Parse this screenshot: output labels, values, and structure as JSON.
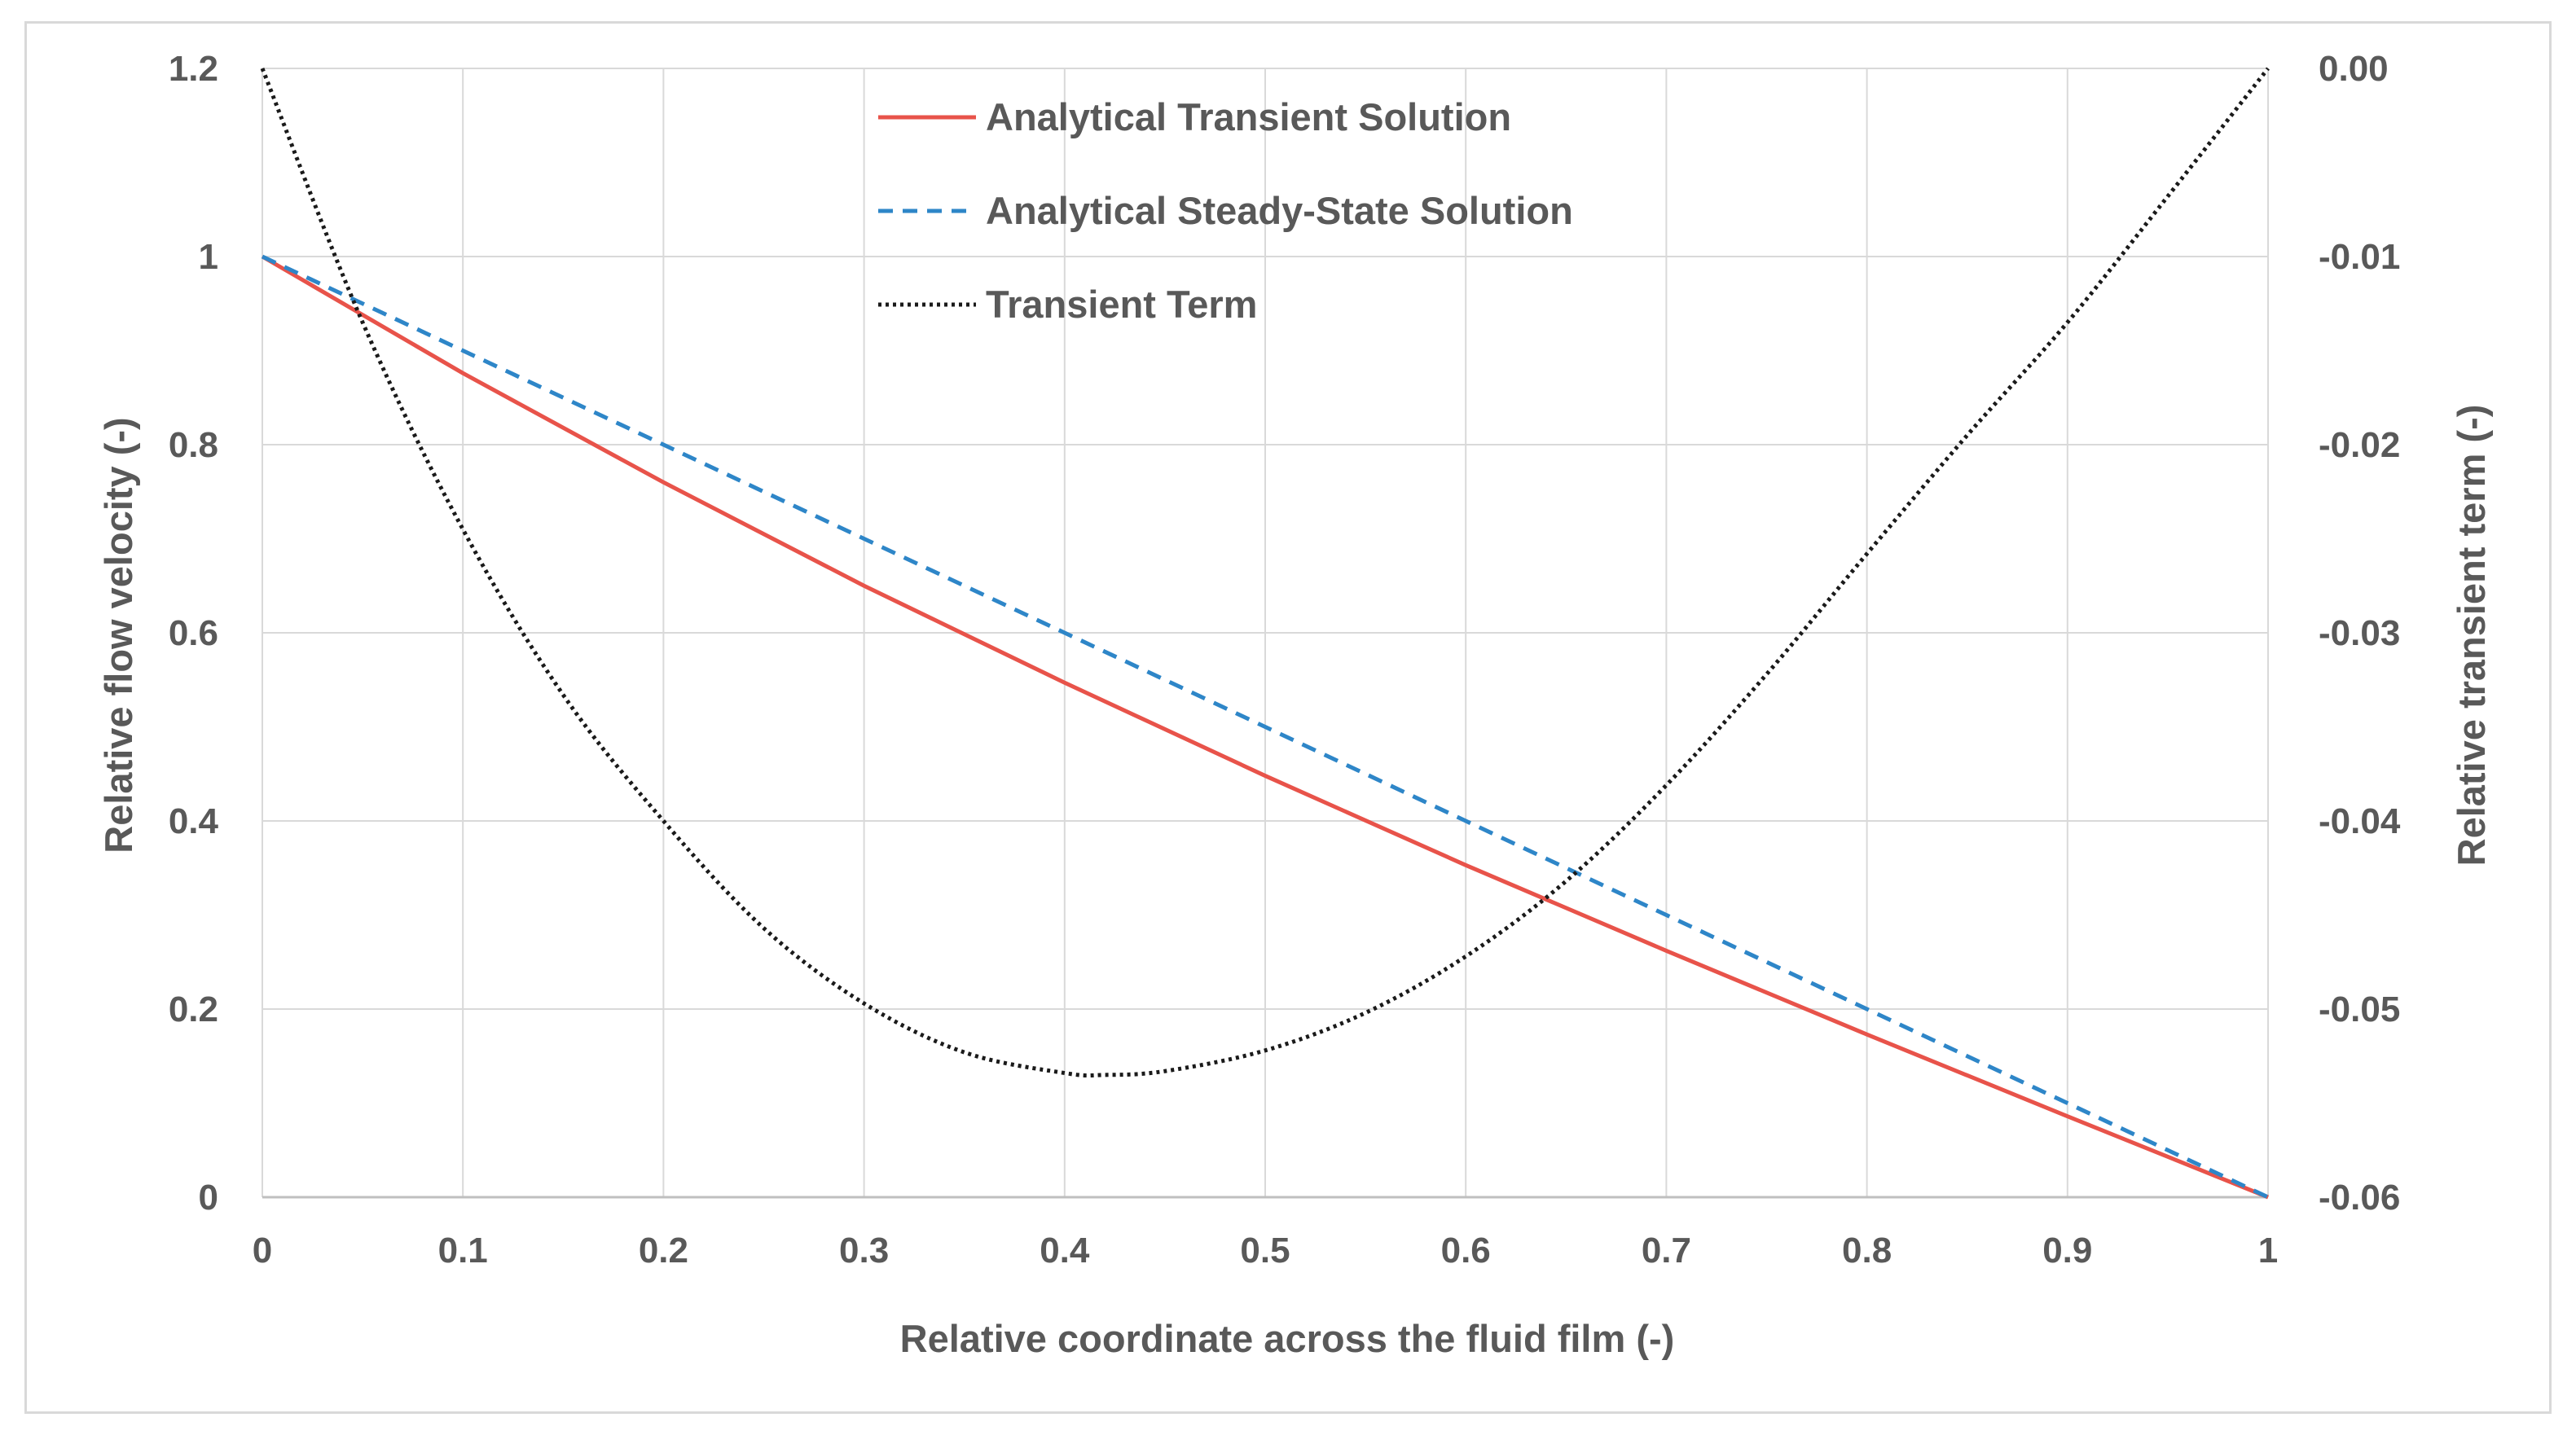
{
  "chart_data": {
    "type": "line",
    "title": "",
    "xlabel": "Relative coordinate across the  fluid film (-)",
    "ylabel": "Relative flow velocity (-)",
    "y2label": "Relative  transient term  (-)",
    "xlim": [
      0,
      1
    ],
    "ylim": [
      0,
      1.2
    ],
    "y2lim": [
      -0.06,
      0.0
    ],
    "x_ticks": [
      "0",
      "0.1",
      "0.2",
      "0.3",
      "0.4",
      "0.5",
      "0.6",
      "0.7",
      "0.8",
      "0.9",
      "1"
    ],
    "y_ticks": [
      "0",
      "0.2",
      "0.4",
      "0.6",
      "0.8",
      "1",
      "1.2"
    ],
    "y2_ticks": [
      "-0.06",
      "-0.05",
      "-0.04",
      "-0.03",
      "-0.02",
      "-0.01",
      "0.00"
    ],
    "grid": true,
    "legend_position": "top-center",
    "series": [
      {
        "name": "Analytical Transient Solution",
        "axis": "left",
        "color": "#e8534a",
        "style": "solid",
        "x": [
          0,
          0.1,
          0.2,
          0.3,
          0.4,
          0.5,
          0.6,
          0.7,
          0.8,
          0.9,
          1.0
        ],
        "y": [
          1.0,
          0.876,
          0.76,
          0.65,
          0.547,
          0.448,
          0.353,
          0.262,
          0.173,
          0.086,
          0.0
        ]
      },
      {
        "name": "Analytical Steady-State Solution",
        "axis": "left",
        "color": "#2e86c8",
        "style": "dashed",
        "x": [
          0,
          0.1,
          0.2,
          0.3,
          0.4,
          0.5,
          0.6,
          0.7,
          0.8,
          0.9,
          1.0
        ],
        "y": [
          1.0,
          0.9,
          0.8,
          0.7,
          0.6,
          0.5,
          0.4,
          0.3,
          0.2,
          0.1,
          0.0
        ]
      },
      {
        "name": "Transient Term",
        "axis": "right",
        "color": "#1a1a1a",
        "style": "dotted",
        "x": [
          0,
          0.05,
          0.1,
          0.15,
          0.2,
          0.25,
          0.3,
          0.35,
          0.4,
          0.42,
          0.45,
          0.5,
          0.55,
          0.6,
          0.65,
          0.7,
          0.75,
          0.8,
          0.85,
          0.9,
          0.95,
          1.0
        ],
        "y": [
          0.0,
          -0.0135,
          -0.0245,
          -0.0333,
          -0.04,
          -0.0457,
          -0.0497,
          -0.0523,
          -0.0534,
          -0.0535,
          -0.0533,
          -0.0522,
          -0.0502,
          -0.0472,
          -0.0432,
          -0.0381,
          -0.0322,
          -0.0258,
          -0.0195,
          -0.0135,
          -0.0068,
          0.0
        ]
      }
    ]
  }
}
